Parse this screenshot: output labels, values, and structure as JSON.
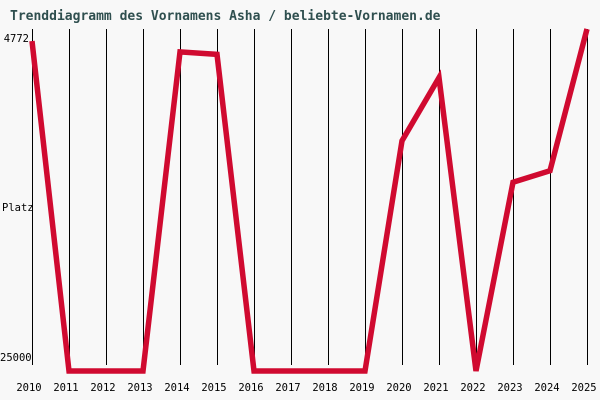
{
  "page": {
    "title": "Trenddiagramm des Vornamens Asha / beliebte-Vornamen.de"
  },
  "colors": {
    "background": "#f8f8f8",
    "title_text": "#2f4f4f",
    "axis_text": "#000000",
    "gridline": "#000000",
    "line": "#d00a30"
  },
  "chart_data": {
    "type": "line",
    "title": "Trenddiagramm des Vornamens Asha / beliebte-Vornamen.de",
    "ylabel": "Platz",
    "grid": "vertical-only",
    "legend": "none",
    "y_axis": {
      "top_label": "4772",
      "bottom_label": "25000",
      "top_value": 4772,
      "bottom_value": 25000,
      "inverted_rank_axis": true
    },
    "categories": [
      "2010",
      "2011",
      "2012",
      "2013",
      "2014",
      "2015",
      "2016",
      "2017",
      "2018",
      "2019",
      "2020",
      "2021",
      "2022",
      "2023",
      "2024",
      "2025"
    ],
    "series": [
      {
        "name": "Asha",
        "color": "#d00a30",
        "values": [
          5500,
          null,
          null,
          null,
          6150,
          6300,
          null,
          null,
          null,
          null,
          11500,
          7700,
          null,
          14000,
          13300,
          4772
        ]
      }
    ],
    "values_estimated": true,
    "unranked_drawn_below_axis": true
  }
}
